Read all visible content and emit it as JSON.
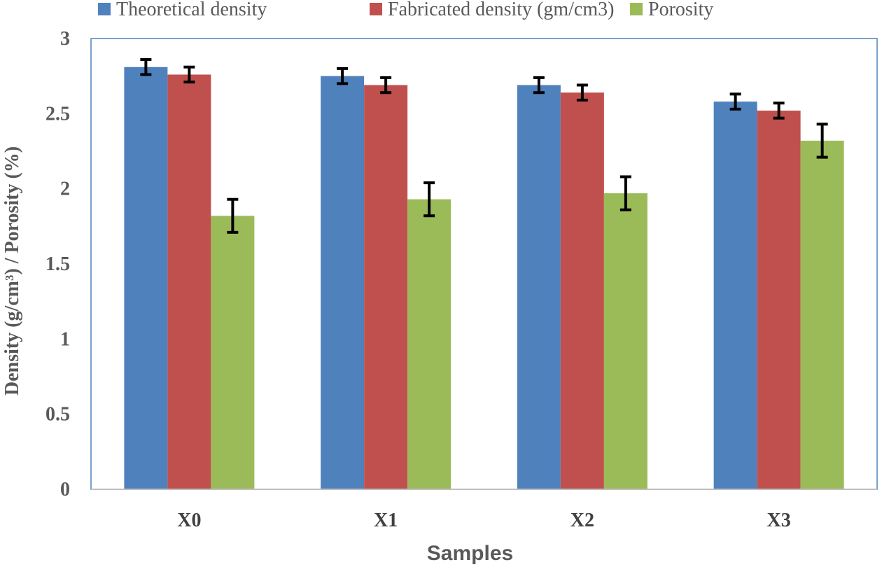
{
  "chart_data": {
    "type": "bar",
    "title": "",
    "xlabel": "Samples",
    "ylabel": "Density (g/cm³) / Porosity (%)",
    "categories": [
      "X0",
      "X1",
      "X2",
      "X3"
    ],
    "ylim": [
      0,
      3
    ],
    "yticks": [
      "0",
      "0.5",
      "1",
      "1.5",
      "2",
      "2.5",
      "3"
    ],
    "yticks_values": [
      0,
      0.5,
      1,
      1.5,
      2,
      2.5,
      3
    ],
    "grid": false,
    "legend_position": "top",
    "series": [
      {
        "name": "Theoretical density",
        "color": "#4f81bd",
        "values": [
          2.81,
          2.75,
          2.69,
          2.58
        ],
        "errors": [
          0.05,
          0.05,
          0.05,
          0.05
        ]
      },
      {
        "name": "Fabricated density (gm/cm3)",
        "color": "#c0504d",
        "values": [
          2.76,
          2.69,
          2.64,
          2.52
        ],
        "errors": [
          0.05,
          0.05,
          0.05,
          0.05
        ]
      },
      {
        "name": "Porosity",
        "color": "#9bbb59",
        "values": [
          1.82,
          1.93,
          1.97,
          2.32
        ],
        "errors": [
          0.11,
          0.11,
          0.11,
          0.11
        ]
      }
    ]
  }
}
